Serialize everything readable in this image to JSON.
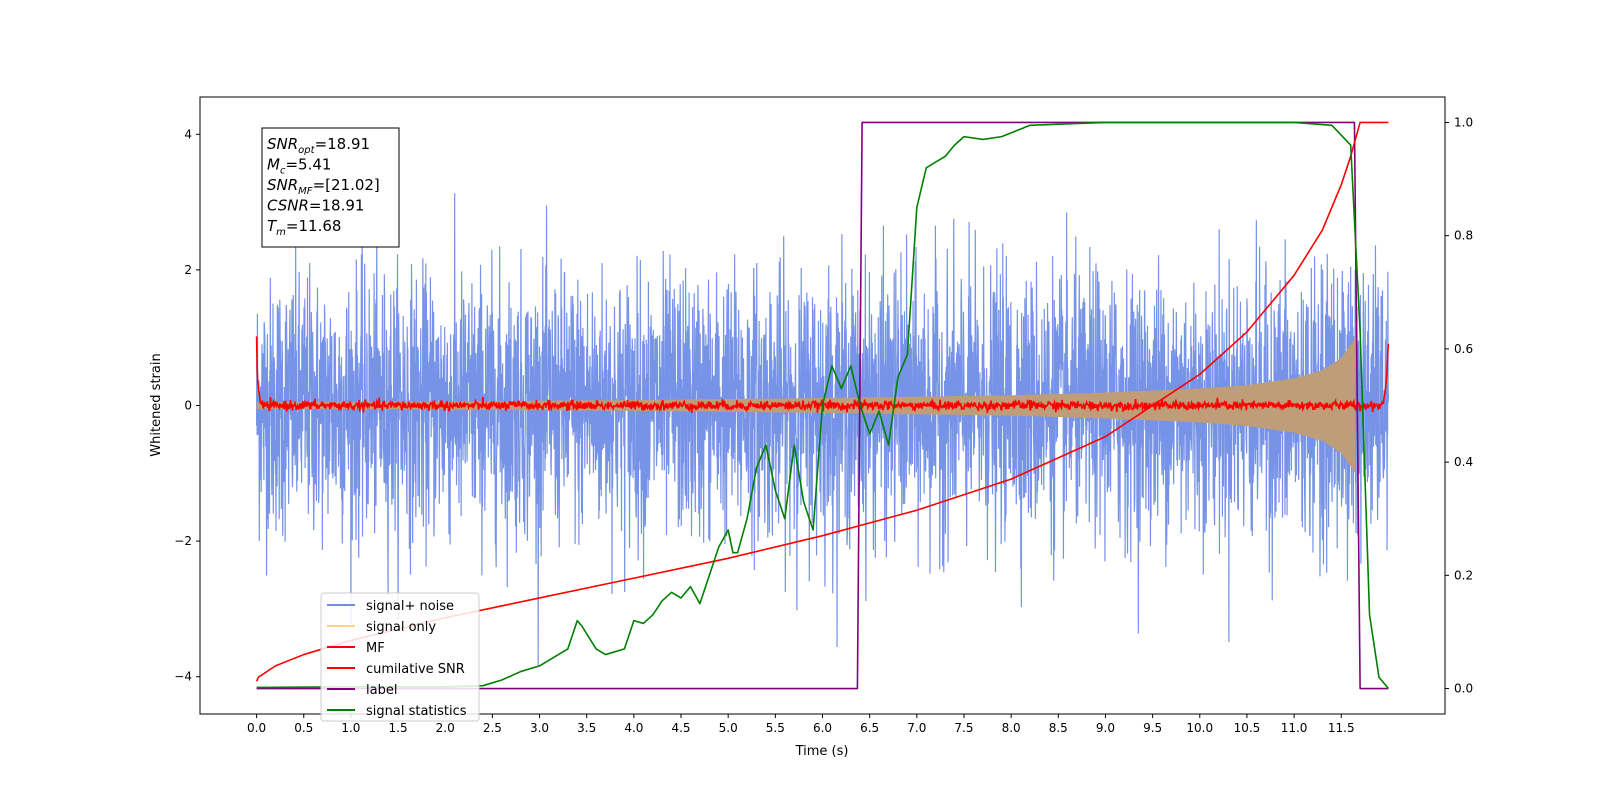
{
  "chart_data": {
    "type": "line",
    "title": "",
    "xlabel": "Time (s)",
    "ylabel": "Whitened strain",
    "xlim": [
      -0.6,
      12.6
    ],
    "ylim": [
      -4.55,
      4.55
    ],
    "y2lim": [
      -0.045,
      1.045
    ],
    "x_ticks": [
      0.0,
      0.5,
      1.0,
      1.5,
      2.0,
      2.5,
      3.0,
      3.5,
      4.0,
      4.5,
      5.0,
      5.5,
      6.0,
      6.5,
      7.0,
      7.5,
      8.0,
      8.5,
      9.0,
      9.5,
      10.0,
      10.5,
      11.0,
      11.5
    ],
    "x_tick_labels": [
      "0.0",
      "0.5",
      "1.0",
      "1.5",
      "2.0",
      "2.5",
      "3.0",
      "3.5",
      "4.0",
      "4.5",
      "5.0",
      "5.5",
      "6.0",
      "6.5",
      "7.0",
      "7.5",
      "8.0",
      "8.5",
      "9.0",
      "9.5",
      "10.0",
      "10.5",
      "11.0",
      "11.5"
    ],
    "y_ticks": [
      -4,
      -2,
      0,
      2,
      4
    ],
    "y_tick_labels": [
      "−4",
      "−2",
      "0",
      "2",
      "4"
    ],
    "y2_ticks": [
      0.0,
      0.2,
      0.4,
      0.6,
      0.8,
      1.0
    ],
    "y2_tick_labels": [
      "0.0",
      "0.2",
      "0.4",
      "0.6",
      "0.8",
      "1.0"
    ],
    "legend_position": "lower-left",
    "grid": false,
    "series": [
      {
        "name": "signal+ noise",
        "color": "#6f8de6",
        "axis": "left",
        "kind": "noise",
        "x_range": [
          0.0,
          12.0
        ],
        "std": 1.0
      },
      {
        "name": "signal only",
        "color": "#ffd27f",
        "axis": "left",
        "kind": "chirp",
        "fill_color": "#bf9d78",
        "x": [
          0.0,
          2.0,
          4.0,
          6.0,
          7.0,
          8.0,
          9.0,
          10.0,
          10.5,
          11.0,
          11.3,
          11.5,
          11.6,
          11.65
        ],
        "amplitude": [
          0.05,
          0.06,
          0.08,
          0.11,
          0.13,
          0.15,
          0.19,
          0.25,
          0.3,
          0.4,
          0.52,
          0.7,
          0.9,
          1.0
        ]
      },
      {
        "name": "MF",
        "color": "#ff0000",
        "axis": "left",
        "kind": "mf",
        "x": [
          0.0,
          0.01,
          0.03,
          0.06,
          0.1,
          11.9,
          11.95,
          11.98,
          12.0
        ],
        "y": [
          1.0,
          0.35,
          0.1,
          0.0,
          0.0,
          0.0,
          0.05,
          0.4,
          0.95
        ]
      },
      {
        "name": "cumilative SNR",
        "color": "#ff0000",
        "axis": "right",
        "x": [
          0.0,
          0.02,
          0.2,
          0.5,
          1.0,
          2.0,
          3.0,
          4.0,
          5.0,
          6.0,
          7.0,
          8.0,
          9.0,
          10.0,
          10.5,
          11.0,
          11.3,
          11.5,
          11.6,
          11.7,
          12.0
        ],
        "y": [
          0.013,
          0.02,
          0.04,
          0.06,
          0.085,
          0.125,
          0.16,
          0.195,
          0.23,
          0.27,
          0.315,
          0.37,
          0.445,
          0.555,
          0.63,
          0.73,
          0.81,
          0.89,
          0.94,
          1.0,
          1.0
        ]
      },
      {
        "name": "label",
        "color": "#800080",
        "axis": "right",
        "x": [
          0.0,
          6.37,
          6.42,
          11.64,
          11.7,
          12.0
        ],
        "y": [
          0.0,
          0.0,
          1.0,
          1.0,
          0.0,
          0.0
        ]
      },
      {
        "name": "signal statistics",
        "color": "#008000",
        "axis": "right",
        "x": [
          0.0,
          1.0,
          2.0,
          2.4,
          2.6,
          2.8,
          3.0,
          3.2,
          3.3,
          3.4,
          3.45,
          3.6,
          3.7,
          3.9,
          4.0,
          4.1,
          4.2,
          4.3,
          4.4,
          4.5,
          4.6,
          4.7,
          4.8,
          4.9,
          5.0,
          5.05,
          5.1,
          5.2,
          5.3,
          5.4,
          5.5,
          5.6,
          5.7,
          5.8,
          5.9,
          6.0,
          6.1,
          6.2,
          6.3,
          6.4,
          6.5,
          6.6,
          6.7,
          6.8,
          6.9,
          7.0,
          7.1,
          7.2,
          7.3,
          7.4,
          7.5,
          7.7,
          7.9,
          8.2,
          9.0,
          9.5,
          10.0,
          10.5,
          11.0,
          11.4,
          11.6,
          11.7,
          11.8,
          11.9,
          12.0
        ],
        "y": [
          0.002,
          0.003,
          0.003,
          0.005,
          0.015,
          0.03,
          0.04,
          0.06,
          0.07,
          0.12,
          0.11,
          0.07,
          0.06,
          0.07,
          0.12,
          0.115,
          0.13,
          0.155,
          0.17,
          0.16,
          0.18,
          0.15,
          0.2,
          0.25,
          0.28,
          0.24,
          0.24,
          0.3,
          0.39,
          0.43,
          0.35,
          0.3,
          0.43,
          0.33,
          0.28,
          0.5,
          0.57,
          0.53,
          0.57,
          0.5,
          0.45,
          0.49,
          0.43,
          0.55,
          0.59,
          0.85,
          0.92,
          0.93,
          0.94,
          0.96,
          0.975,
          0.97,
          0.975,
          0.995,
          1.0,
          1.0,
          1.0,
          1.0,
          1.0,
          0.995,
          0.96,
          0.63,
          0.13,
          0.02,
          0.0
        ]
      }
    ],
    "annotation": [
      {
        "sym": "SNR",
        "sub": "opt",
        "value": "=18.91"
      },
      {
        "sym": "M",
        "sub": "c",
        "value": "=5.41"
      },
      {
        "sym": "SNR",
        "sub": "MF",
        "value": "=[21.02]"
      },
      {
        "sym": "CSNR",
        "sub": "",
        "value": "=18.91"
      },
      {
        "sym": "T",
        "sub": "m",
        "value": "=11.68"
      }
    ]
  }
}
